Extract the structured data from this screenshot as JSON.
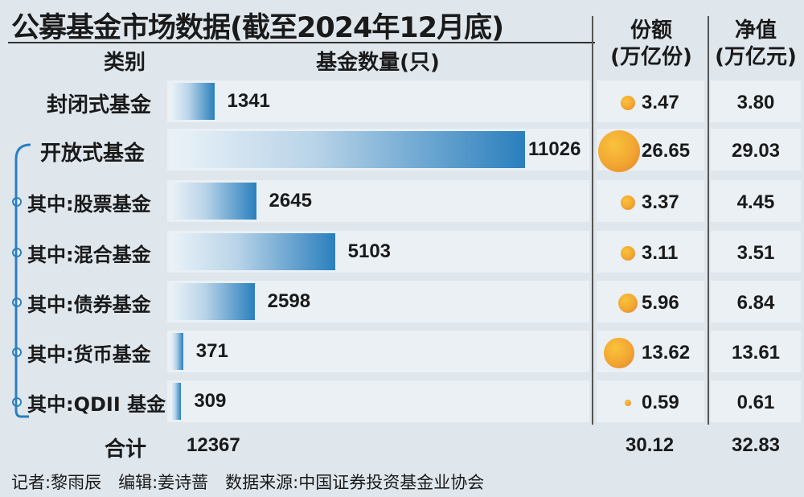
{
  "title": "公募基金市场数据(截至2024年12月底)",
  "headers": {
    "category": "类别",
    "count": "基金数量(只)",
    "share": "份额\n(万亿份)",
    "nav": "净值\n(万亿元)"
  },
  "chart_data": {
    "type": "table",
    "rows": [
      {
        "label": "封闭式基金",
        "count": 1341,
        "share": 3.47,
        "nav": 3.8,
        "sub": false
      },
      {
        "label": "开放式基金",
        "count": 11026,
        "share": 26.65,
        "nav": 29.03,
        "sub": false
      },
      {
        "label": "其中:股票基金",
        "count": 2645,
        "share": 3.37,
        "nav": 4.45,
        "sub": true
      },
      {
        "label": "其中:混合基金",
        "count": 5103,
        "share": 3.11,
        "nav": 3.51,
        "sub": true
      },
      {
        "label": "其中:债券基金",
        "count": 2598,
        "share": 5.96,
        "nav": 6.84,
        "sub": true
      },
      {
        "label": "其中:货币基金",
        "count": 371,
        "share": 13.62,
        "nav": 13.61,
        "sub": true
      },
      {
        "label": "其中:QDII 基金",
        "count": 309,
        "share": 0.59,
        "nav": 0.61,
        "sub": true
      }
    ],
    "share_display": [
      "3.47",
      "26.65",
      "3.37",
      "3.11",
      "5.96",
      "13.62",
      "0.59"
    ],
    "nav_display": [
      "3.80",
      "29.03",
      "4.45",
      "3.51",
      "6.84",
      "13.61",
      "0.61"
    ]
  },
  "total": {
    "label": "合计",
    "count": "12367",
    "share": "30.12",
    "nav": "32.83"
  },
  "footer": "记者:黎雨辰　编辑:姜诗蔷　数据来源:中国证券投资基金业协会",
  "colors": {
    "bar": "#2a7fbd",
    "bubble": "#f2a632",
    "background": "#dfe6ec"
  }
}
